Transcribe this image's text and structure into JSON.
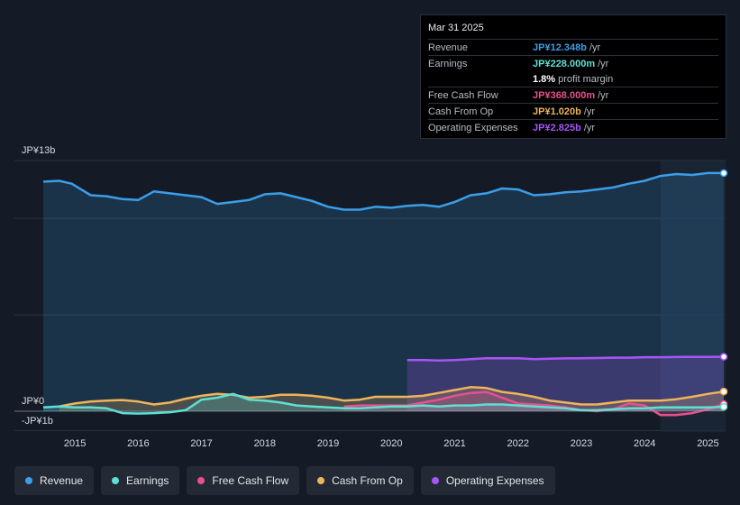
{
  "tooltip": {
    "date": "Mar 31 2025",
    "rows": [
      {
        "label": "Revenue",
        "value": "JP¥12.348b",
        "unit": "/yr",
        "color": "#3b9ee8"
      },
      {
        "label": "Earnings",
        "value": "JP¥228.000m",
        "unit": "/yr",
        "color": "#5fe0d4"
      },
      {
        "label": "",
        "value": "1.8%",
        "unit": "profit margin",
        "color": "#ffffff"
      },
      {
        "label": "Free Cash Flow",
        "value": "JP¥368.000m",
        "unit": "/yr",
        "color": "#e8508f"
      },
      {
        "label": "Cash From Op",
        "value": "JP¥1.020b",
        "unit": "/yr",
        "color": "#f0b45a"
      },
      {
        "label": "Operating Expenses",
        "value": "JP¥2.825b",
        "unit": "/yr",
        "color": "#a855f7"
      }
    ]
  },
  "legend": [
    {
      "label": "Revenue",
      "color": "#3b9ee8"
    },
    {
      "label": "Earnings",
      "color": "#5fe0d4"
    },
    {
      "label": "Free Cash Flow",
      "color": "#e8508f"
    },
    {
      "label": "Cash From Op",
      "color": "#f0b45a"
    },
    {
      "label": "Operating Expenses",
      "color": "#a855f7"
    }
  ],
  "chart_data": {
    "type": "line",
    "title": "",
    "y_labels": {
      "top": "JP¥13b",
      "zero": "JP¥0",
      "bottom": "-JP¥1b"
    },
    "ylim": [
      -1,
      13
    ],
    "xlim": [
      2014.5,
      2025.25
    ],
    "x_ticks": [
      "2015",
      "2016",
      "2017",
      "2018",
      "2019",
      "2020",
      "2021",
      "2022",
      "2023",
      "2024",
      "2025"
    ],
    "forecast_start": 2024.25,
    "series": [
      {
        "name": "Revenue",
        "color": "#3b9ee8",
        "fill": true,
        "points": [
          [
            2014.5,
            11.9
          ],
          [
            2014.75,
            11.95
          ],
          [
            2014.95,
            11.8
          ],
          [
            2015.25,
            11.2
          ],
          [
            2015.5,
            11.15
          ],
          [
            2015.75,
            11.0
          ],
          [
            2016.0,
            10.95
          ],
          [
            2016.25,
            11.4
          ],
          [
            2016.5,
            11.3
          ],
          [
            2016.75,
            11.2
          ],
          [
            2017.0,
            11.1
          ],
          [
            2017.25,
            10.75
          ],
          [
            2017.5,
            10.85
          ],
          [
            2017.75,
            10.95
          ],
          [
            2018.0,
            11.25
          ],
          [
            2018.25,
            11.3
          ],
          [
            2018.5,
            11.1
          ],
          [
            2018.75,
            10.9
          ],
          [
            2019.0,
            10.6
          ],
          [
            2019.25,
            10.45
          ],
          [
            2019.5,
            10.45
          ],
          [
            2019.75,
            10.6
          ],
          [
            2020.0,
            10.55
          ],
          [
            2020.25,
            10.65
          ],
          [
            2020.5,
            10.7
          ],
          [
            2020.75,
            10.6
          ],
          [
            2021.0,
            10.85
          ],
          [
            2021.25,
            11.2
          ],
          [
            2021.5,
            11.3
          ],
          [
            2021.75,
            11.55
          ],
          [
            2022.0,
            11.5
          ],
          [
            2022.25,
            11.2
          ],
          [
            2022.5,
            11.25
          ],
          [
            2022.75,
            11.35
          ],
          [
            2023.0,
            11.4
          ],
          [
            2023.25,
            11.5
          ],
          [
            2023.5,
            11.6
          ],
          [
            2023.75,
            11.8
          ],
          [
            2024.0,
            11.95
          ],
          [
            2024.25,
            12.2
          ],
          [
            2024.5,
            12.3
          ],
          [
            2024.75,
            12.25
          ],
          [
            2025.0,
            12.35
          ],
          [
            2025.25,
            12.348
          ]
        ]
      },
      {
        "name": "Operating Expenses",
        "color": "#a855f7",
        "fill": true,
        "points": [
          [
            2020.25,
            2.65
          ],
          [
            2020.5,
            2.65
          ],
          [
            2020.75,
            2.63
          ],
          [
            2021.0,
            2.65
          ],
          [
            2021.25,
            2.7
          ],
          [
            2021.5,
            2.75
          ],
          [
            2021.75,
            2.75
          ],
          [
            2022.0,
            2.75
          ],
          [
            2022.25,
            2.7
          ],
          [
            2022.5,
            2.72
          ],
          [
            2022.75,
            2.74
          ],
          [
            2023.0,
            2.75
          ],
          [
            2023.25,
            2.76
          ],
          [
            2023.5,
            2.78
          ],
          [
            2023.75,
            2.78
          ],
          [
            2024.0,
            2.8
          ],
          [
            2024.25,
            2.8
          ],
          [
            2024.5,
            2.81
          ],
          [
            2024.75,
            2.82
          ],
          [
            2025.0,
            2.82
          ],
          [
            2025.25,
            2.825
          ]
        ]
      },
      {
        "name": "Cash From Op",
        "color": "#f0b45a",
        "fill": true,
        "points": [
          [
            2014.75,
            0.25
          ],
          [
            2015.0,
            0.4
          ],
          [
            2015.25,
            0.5
          ],
          [
            2015.5,
            0.55
          ],
          [
            2015.75,
            0.58
          ],
          [
            2016.0,
            0.5
          ],
          [
            2016.25,
            0.35
          ],
          [
            2016.5,
            0.45
          ],
          [
            2016.75,
            0.65
          ],
          [
            2017.0,
            0.8
          ],
          [
            2017.25,
            0.9
          ],
          [
            2017.5,
            0.85
          ],
          [
            2017.75,
            0.7
          ],
          [
            2018.0,
            0.75
          ],
          [
            2018.25,
            0.85
          ],
          [
            2018.5,
            0.85
          ],
          [
            2018.75,
            0.8
          ],
          [
            2019.0,
            0.7
          ],
          [
            2019.25,
            0.55
          ],
          [
            2019.5,
            0.6
          ],
          [
            2019.75,
            0.75
          ],
          [
            2020.0,
            0.75
          ],
          [
            2020.25,
            0.75
          ],
          [
            2020.5,
            0.8
          ],
          [
            2020.75,
            0.95
          ],
          [
            2021.0,
            1.1
          ],
          [
            2021.25,
            1.25
          ],
          [
            2021.5,
            1.2
          ],
          [
            2021.75,
            1.0
          ],
          [
            2022.0,
            0.9
          ],
          [
            2022.25,
            0.75
          ],
          [
            2022.5,
            0.55
          ],
          [
            2022.75,
            0.45
          ],
          [
            2023.0,
            0.35
          ],
          [
            2023.25,
            0.35
          ],
          [
            2023.5,
            0.45
          ],
          [
            2023.75,
            0.55
          ],
          [
            2024.0,
            0.55
          ],
          [
            2024.25,
            0.55
          ],
          [
            2024.5,
            0.62
          ],
          [
            2024.75,
            0.75
          ],
          [
            2025.0,
            0.9
          ],
          [
            2025.25,
            1.02
          ]
        ]
      },
      {
        "name": "Free Cash Flow",
        "color": "#e8508f",
        "fill": true,
        "points": [
          [
            2019.25,
            0.25
          ],
          [
            2019.5,
            0.3
          ],
          [
            2019.75,
            0.3
          ],
          [
            2020.0,
            0.3
          ],
          [
            2020.25,
            0.3
          ],
          [
            2020.5,
            0.45
          ],
          [
            2020.75,
            0.6
          ],
          [
            2021.0,
            0.8
          ],
          [
            2021.25,
            0.95
          ],
          [
            2021.5,
            1.0
          ],
          [
            2021.75,
            0.7
          ],
          [
            2022.0,
            0.4
          ],
          [
            2022.25,
            0.35
          ],
          [
            2022.5,
            0.3
          ],
          [
            2022.75,
            0.2
          ],
          [
            2023.0,
            0.05
          ],
          [
            2023.25,
            0.0
          ],
          [
            2023.5,
            0.1
          ],
          [
            2023.75,
            0.4
          ],
          [
            2024.0,
            0.3
          ],
          [
            2024.25,
            -0.2
          ],
          [
            2024.5,
            -0.2
          ],
          [
            2024.75,
            -0.1
          ],
          [
            2025.0,
            0.1
          ],
          [
            2025.25,
            0.368
          ]
        ]
      },
      {
        "name": "Earnings",
        "color": "#5fe0d4",
        "fill": true,
        "points": [
          [
            2014.5,
            0.2
          ],
          [
            2014.75,
            0.25
          ],
          [
            2015.0,
            0.2
          ],
          [
            2015.25,
            0.2
          ],
          [
            2015.5,
            0.15
          ],
          [
            2015.75,
            -0.1
          ],
          [
            2016.0,
            -0.12
          ],
          [
            2016.25,
            -0.1
          ],
          [
            2016.5,
            -0.05
          ],
          [
            2016.75,
            0.05
          ],
          [
            2017.0,
            0.6
          ],
          [
            2017.25,
            0.7
          ],
          [
            2017.5,
            0.9
          ],
          [
            2017.75,
            0.6
          ],
          [
            2018.0,
            0.55
          ],
          [
            2018.25,
            0.45
          ],
          [
            2018.5,
            0.3
          ],
          [
            2018.75,
            0.25
          ],
          [
            2019.0,
            0.2
          ],
          [
            2019.25,
            0.15
          ],
          [
            2019.5,
            0.15
          ],
          [
            2019.75,
            0.2
          ],
          [
            2020.0,
            0.25
          ],
          [
            2020.25,
            0.25
          ],
          [
            2020.5,
            0.3
          ],
          [
            2020.75,
            0.25
          ],
          [
            2021.0,
            0.3
          ],
          [
            2021.25,
            0.3
          ],
          [
            2021.5,
            0.35
          ],
          [
            2021.75,
            0.35
          ],
          [
            2022.0,
            0.3
          ],
          [
            2022.25,
            0.25
          ],
          [
            2022.5,
            0.2
          ],
          [
            2022.75,
            0.15
          ],
          [
            2023.0,
            0.05
          ],
          [
            2023.25,
            0.05
          ],
          [
            2023.5,
            0.1
          ],
          [
            2023.75,
            0.15
          ],
          [
            2024.0,
            0.15
          ],
          [
            2024.25,
            0.2
          ],
          [
            2024.5,
            0.2
          ],
          [
            2024.75,
            0.2
          ],
          [
            2025.0,
            0.2
          ],
          [
            2025.25,
            0.228
          ]
        ]
      }
    ]
  }
}
